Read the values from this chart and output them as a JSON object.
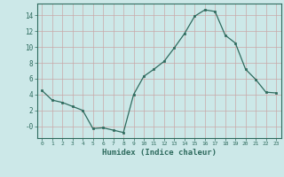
{
  "x": [
    0,
    1,
    2,
    3,
    4,
    5,
    6,
    7,
    8,
    9,
    10,
    11,
    12,
    13,
    14,
    15,
    16,
    17,
    18,
    19,
    20,
    21,
    22,
    23
  ],
  "y": [
    4.5,
    3.3,
    3.0,
    2.5,
    2.0,
    -0.3,
    -0.2,
    -0.5,
    -0.8,
    4.0,
    6.3,
    7.2,
    8.2,
    9.9,
    11.7,
    13.9,
    14.7,
    14.5,
    11.5,
    10.5,
    7.2,
    5.9,
    4.3,
    4.2
  ],
  "line_color": "#2e6b5e",
  "marker": "s",
  "markersize": 2.0,
  "linewidth": 0.9,
  "xlabel": "Humidex (Indice chaleur)",
  "xlabel_fontsize": 6.5,
  "bg_color": "#cce8e8",
  "grid_color_major": "#aad0d0",
  "grid_color_minor": "#bbdddd",
  "ylim": [
    -1.5,
    15.5
  ],
  "xlim": [
    -0.5,
    23.5
  ],
  "ytick_vals": [
    0,
    2,
    4,
    6,
    8,
    10,
    12,
    14
  ],
  "ytick_labels": [
    "-0",
    "2",
    "4",
    "6",
    "8",
    "10",
    "12",
    "14"
  ],
  "xtick_labels": [
    "0",
    "1",
    "2",
    "3",
    "4",
    "5",
    "6",
    "7",
    "8",
    "9",
    "10",
    "11",
    "12",
    "13",
    "14",
    "15",
    "16",
    "17",
    "18",
    "19",
    "20",
    "21",
    "22",
    "23"
  ]
}
